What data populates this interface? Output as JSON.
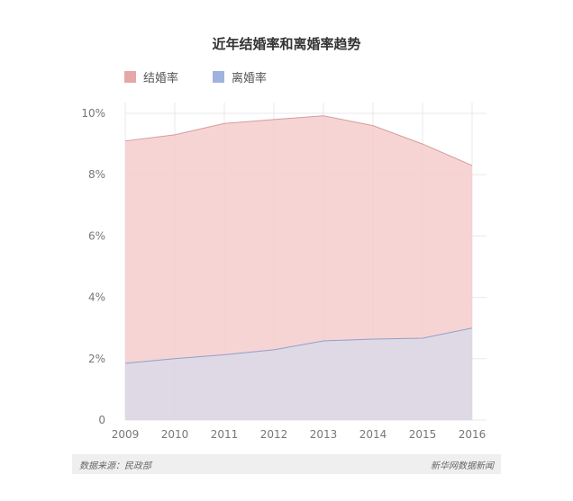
{
  "chart_data": {
    "type": "area",
    "title": "近年结婚率和离婚率趋势",
    "categories": [
      "2009",
      "2010",
      "2011",
      "2012",
      "2013",
      "2014",
      "2015",
      "2016"
    ],
    "series": [
      {
        "name": "结婚率",
        "values": [
          9.1,
          9.3,
          9.67,
          9.8,
          9.92,
          9.6,
          9.0,
          8.3
        ],
        "color": "#f4cccc",
        "line_color": "#d99a9a"
      },
      {
        "name": "离婚率",
        "values": [
          1.85,
          2.0,
          2.13,
          2.29,
          2.58,
          2.64,
          2.67,
          3.0
        ],
        "color": "#d9d9e8",
        "line_color": "#8fa0cc"
      }
    ],
    "ylim": [
      0,
      10
    ],
    "yticks": [
      0,
      2,
      4,
      6,
      8,
      10
    ],
    "ytick_labels": [
      "0",
      "2%",
      "4%",
      "6%",
      "8%",
      "10%"
    ],
    "grid": true,
    "legend": "top-left"
  },
  "footer": {
    "source": "数据来源：民政部",
    "brand": "新华网数据新闻"
  },
  "colors": {
    "marriage_swatch": "#e5a8a8",
    "divorce_swatch": "#9fb3de",
    "grid": "#e8e8e8"
  }
}
